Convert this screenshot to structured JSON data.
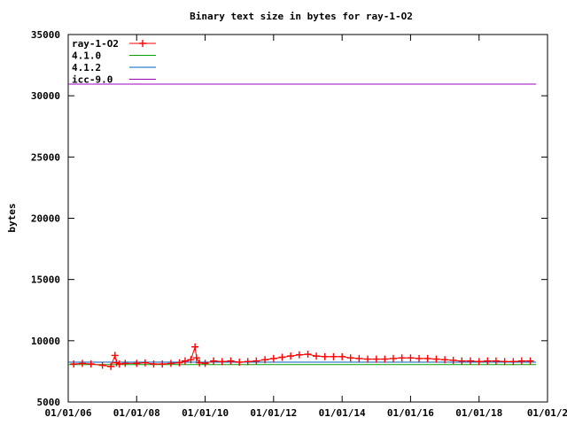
{
  "chart_data": {
    "type": "line",
    "title": "Binary text size in bytes for ray-1-O2",
    "xlabel": "",
    "ylabel": "bytes",
    "x_type": "date",
    "xlim": [
      "2006-01-01",
      "2020-01-01"
    ],
    "ylim": [
      5000,
      35000
    ],
    "y_ticks": [
      5000,
      10000,
      15000,
      20000,
      25000,
      30000,
      35000
    ],
    "y_tick_labels": [
      "5000",
      "10000",
      "15000",
      "20000",
      "25000",
      "30000",
      "35000"
    ],
    "x_ticks": [
      "2006-01-01",
      "2008-01-01",
      "2010-01-01",
      "2012-01-01",
      "2014-01-01",
      "2016-01-01",
      "2018-01-01",
      "2020-01-01"
    ],
    "x_tick_labels": [
      "01/01/06",
      "01/01/08",
      "01/01/10",
      "01/01/12",
      "01/01/14",
      "01/01/16",
      "01/01/18",
      "01/01/2"
    ],
    "grid": false,
    "legend_position": "top-left",
    "series": [
      {
        "name": "ray-1-O2",
        "color": "#ff0000",
        "marker": "plus",
        "x": [
          "2006-03-01",
          "2006-06-01",
          "2006-09-01",
          "2007-01-01",
          "2007-04-01",
          "2007-05-15",
          "2007-06-01",
          "2007-07-01",
          "2007-09-01",
          "2008-01-01",
          "2008-04-01",
          "2008-07-01",
          "2008-10-01",
          "2009-01-01",
          "2009-04-01",
          "2009-06-01",
          "2009-08-01",
          "2009-09-15",
          "2009-10-01",
          "2009-11-01",
          "2010-01-01",
          "2010-04-01",
          "2010-07-01",
          "2010-10-01",
          "2011-01-01",
          "2011-04-01",
          "2011-07-01",
          "2011-10-01",
          "2012-01-01",
          "2012-04-01",
          "2012-07-01",
          "2012-10-01",
          "2013-01-01",
          "2013-04-01",
          "2013-07-01",
          "2013-10-01",
          "2014-01-01",
          "2014-04-01",
          "2014-07-01",
          "2014-10-01",
          "2015-01-01",
          "2015-04-01",
          "2015-07-01",
          "2015-10-01",
          "2016-01-01",
          "2016-04-01",
          "2016-07-01",
          "2016-10-01",
          "2017-01-01",
          "2017-04-01",
          "2017-07-01",
          "2017-10-01",
          "2018-01-01",
          "2018-04-01",
          "2018-07-01",
          "2018-10-01",
          "2019-01-01",
          "2019-04-01",
          "2019-07-01"
        ],
        "y": [
          8100,
          8150,
          8100,
          8000,
          7900,
          8800,
          8200,
          8100,
          8150,
          8150,
          8200,
          8100,
          8100,
          8150,
          8200,
          8350,
          8450,
          9500,
          8600,
          8200,
          8150,
          8350,
          8300,
          8350,
          8250,
          8300,
          8350,
          8450,
          8550,
          8650,
          8750,
          8850,
          8900,
          8750,
          8700,
          8700,
          8700,
          8600,
          8550,
          8500,
          8500,
          8500,
          8550,
          8600,
          8600,
          8550,
          8550,
          8500,
          8450,
          8400,
          8350,
          8350,
          8300,
          8350,
          8350,
          8300,
          8300,
          8350,
          8350
        ]
      },
      {
        "name": "4.1.0",
        "color": "#00a000",
        "x": [
          "2006-01-01",
          "2019-09-01"
        ],
        "y": [
          8050,
          8050
        ]
      },
      {
        "name": "4.1.2",
        "color": "#0060c0",
        "x": [
          "2006-01-01",
          "2019-09-01"
        ],
        "y": [
          8250,
          8250
        ]
      },
      {
        "name": "icc-9.0",
        "color": "#a000c0",
        "x": [
          "2006-01-01",
          "2019-09-01"
        ],
        "y": [
          30950,
          30950
        ]
      }
    ]
  }
}
